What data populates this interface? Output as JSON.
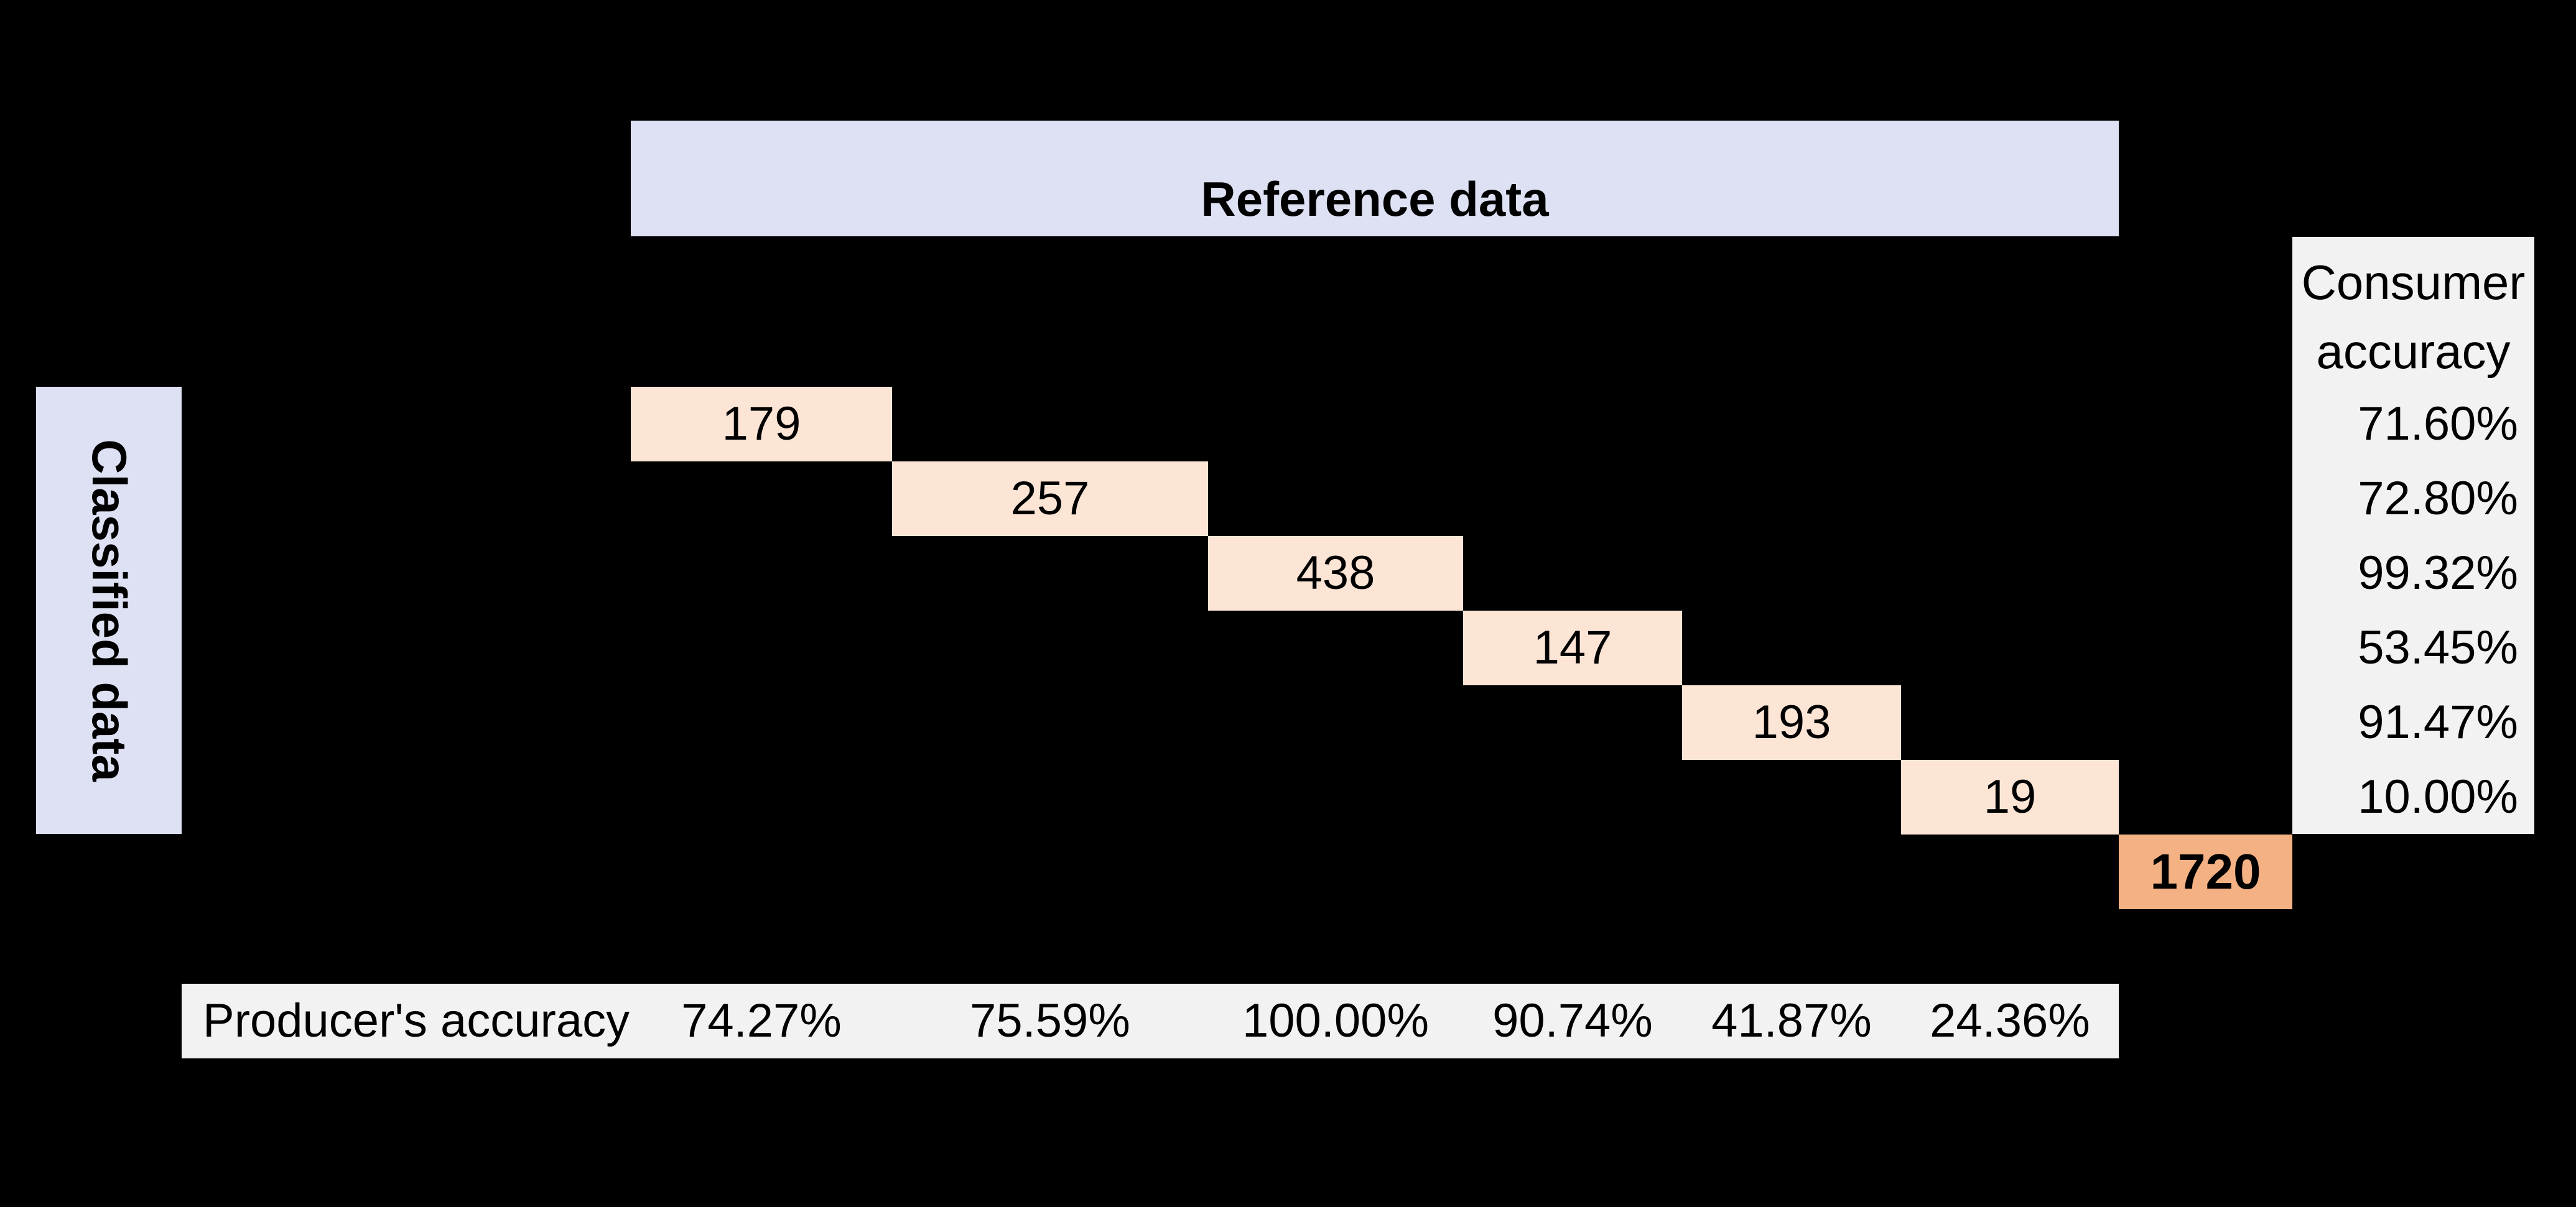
{
  "chart_data": {
    "type": "table",
    "title": "",
    "column_group_label": "Reference data",
    "row_group_label": "Classified data",
    "consumer_accuracy_label": [
      "Consumer",
      "accuracy"
    ],
    "producer_accuracy_label": "Producer's accuracy",
    "diagonal": [
      179,
      257,
      438,
      147,
      193,
      19
    ],
    "total": 1720,
    "consumer_accuracy": [
      "71.60%",
      "72.80%",
      "99.32%",
      "53.45%",
      "91.47%",
      "10.00%"
    ],
    "producer_accuracy": [
      "74.27%",
      "75.59%",
      "100.00%",
      "90.74%",
      "41.87%",
      "24.36%"
    ],
    "colors": {
      "band": "#dde1f3",
      "diagonal": "#fde5d6",
      "total": "#f4b183",
      "panel": "#f2f2f2",
      "background": "#000000"
    }
  }
}
